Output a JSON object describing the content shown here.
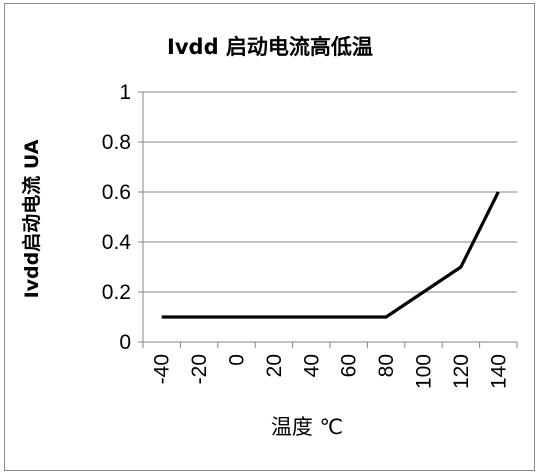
{
  "chart_data": {
    "type": "line",
    "title": "Ivdd 启动电流高低温",
    "xlabel": "温度 ℃",
    "ylabel": "Ivdd启动电流  UA",
    "categories": [
      "-40",
      "-20",
      "0",
      "20",
      "40",
      "60",
      "80",
      "100",
      "120",
      "140"
    ],
    "x": [
      -40,
      -20,
      0,
      20,
      40,
      60,
      80,
      100,
      120,
      140
    ],
    "series": [
      {
        "values": [
          0.1,
          0.1,
          0.1,
          0.1,
          0.1,
          0.1,
          0.1,
          0.2,
          0.3,
          0.6
        ]
      }
    ],
    "ylim": [
      0,
      1
    ],
    "yticks": [
      "0",
      "0.2",
      "0.4",
      "0.6",
      "0.8",
      "1"
    ],
    "ytick_values": [
      0,
      0.2,
      0.4,
      0.6,
      0.8,
      1
    ],
    "grid": {
      "horizontal": true,
      "vertical": false
    },
    "legend": "none",
    "colors": {
      "line": "#000000",
      "grid": "#868686",
      "axis": "#868686"
    }
  }
}
